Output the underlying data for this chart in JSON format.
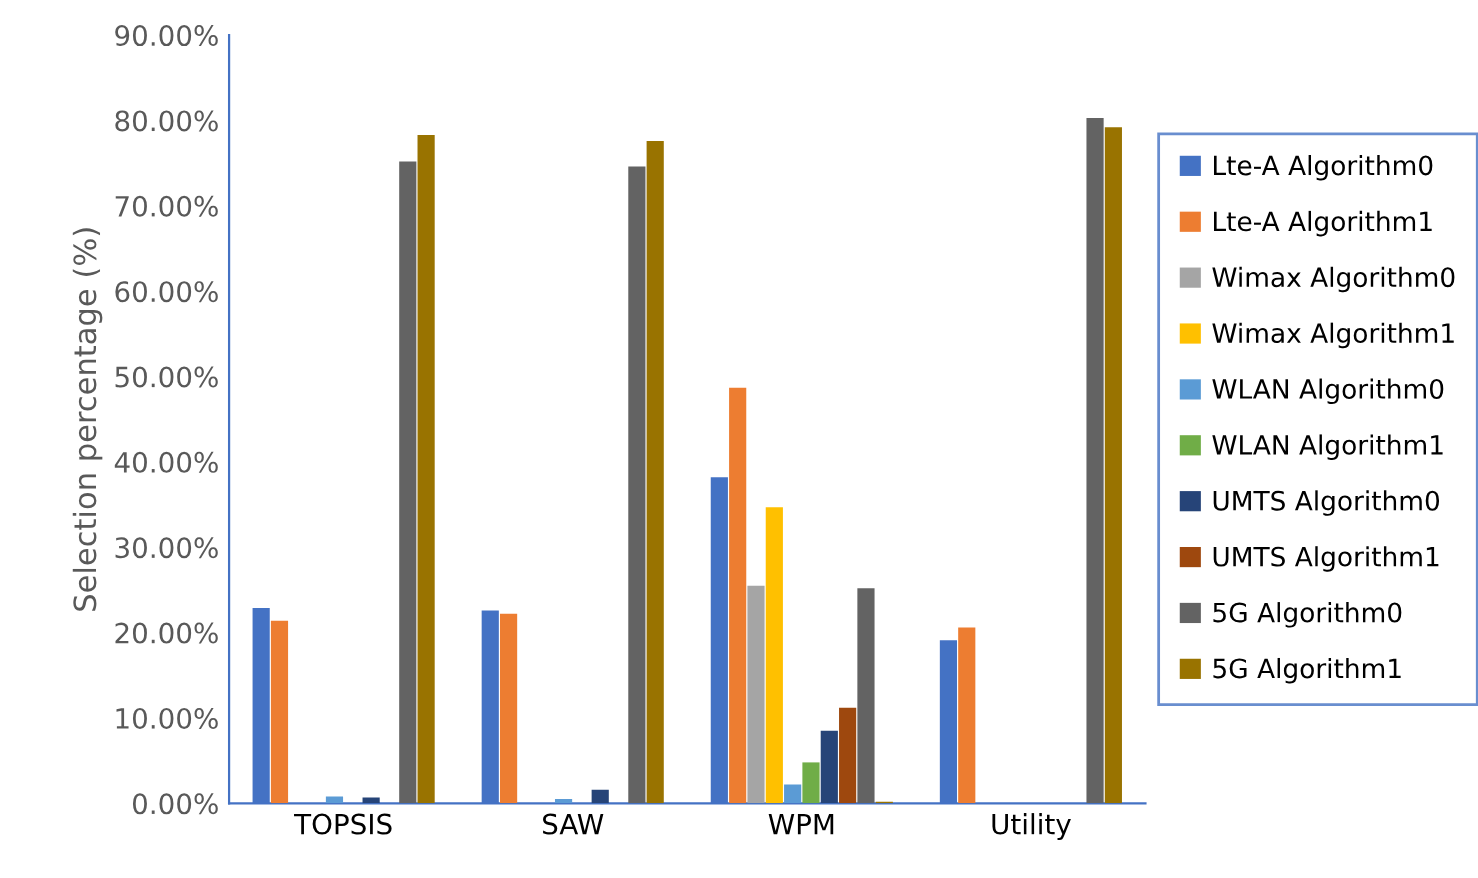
{
  "chart_data": {
    "type": "bar",
    "ylabel": "Selection percentage (%)",
    "categories": [
      "TOPSIS",
      "SAW",
      "WPM",
      "Utility"
    ],
    "series": [
      {
        "name": "Lte-A Algorithm0",
        "color": "#4472c4",
        "values": [
          22.9,
          22.6,
          38.2,
          19.1
        ]
      },
      {
        "name": "Lte-A Algorithm1",
        "color": "#ed7d31",
        "values": [
          21.4,
          22.2,
          48.7,
          20.6
        ]
      },
      {
        "name": "Wimax Algorithm0",
        "color": "#a5a5a5",
        "values": [
          0,
          0,
          25.5,
          0
        ]
      },
      {
        "name": "Wimax Algorithm1",
        "color": "#ffc000",
        "values": [
          0,
          0,
          34.7,
          0
        ]
      },
      {
        "name": "WLAN Algorithm0",
        "color": "#5b9bd5",
        "values": [
          0.8,
          0.5,
          2.2,
          0
        ]
      },
      {
        "name": "WLAN Algorithm1",
        "color": "#70ad47",
        "values": [
          0,
          0,
          4.8,
          0
        ]
      },
      {
        "name": "UMTS Algorithm0",
        "color": "#264478",
        "values": [
          0.7,
          1.6,
          8.5,
          0
        ]
      },
      {
        "name": "UMTS Algorithm1",
        "color": "#9e480e",
        "values": [
          0,
          0,
          11.2,
          0
        ]
      },
      {
        "name": "5G Algorithm0",
        "color": "#636363",
        "values": [
          75.2,
          74.6,
          25.2,
          80.3
        ]
      },
      {
        "name": "5G Algorithm1",
        "color": "#997300",
        "values": [
          78.3,
          77.6,
          0.2,
          79.2
        ]
      }
    ],
    "ylim": [
      0,
      90
    ],
    "yticks": [
      {
        "value": 0,
        "label": "0.00%"
      },
      {
        "value": 10,
        "label": "10.00%"
      },
      {
        "value": 20,
        "label": "20.00%"
      },
      {
        "value": 30,
        "label": "30.00%"
      },
      {
        "value": 40,
        "label": "40.00%"
      },
      {
        "value": 50,
        "label": "50.00%"
      },
      {
        "value": 60,
        "label": "60.00%"
      },
      {
        "value": 70,
        "label": "70.00%"
      },
      {
        "value": 80,
        "label": "80.00%"
      },
      {
        "value": 90,
        "label": "90.00%"
      }
    ],
    "grid": false,
    "legend": "right"
  }
}
